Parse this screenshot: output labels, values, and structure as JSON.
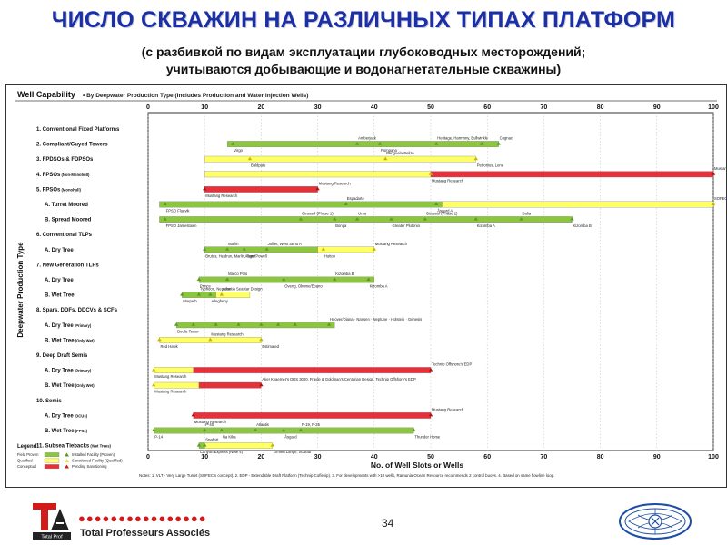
{
  "slide": {
    "title": "ЧИСЛО СКВАЖИН НА РАЗЛИЧНЫХ ТИПАХ ПЛАТФОРМ",
    "subtitle_line1": "(с разбивкой по видам эксплуатации глубоководных месторождений;",
    "subtitle_line2": "учитываются добывающие и водонагнетательные скважины)",
    "page_number": "34",
    "company_dots": "●●●●●●●●●●●●●●●●",
    "company_name": "Total Professeurs Associés",
    "logo_text": "TPA",
    "logo_subtext": "Total Prof"
  },
  "chart_data": {
    "type": "bar",
    "title": "Well Capability",
    "subtitle": "• By Deepwater Production Type (Includes Production and Water Injection Wells)",
    "xlabel": "No. of Well Slots or Wells",
    "ylabel": "Deepwater Production Type",
    "xlim": [
      0,
      100
    ],
    "xticks": [
      0,
      10,
      20,
      30,
      40,
      50,
      60,
      70,
      80,
      90,
      100
    ],
    "colors": {
      "proven": "#8cc63f",
      "qualified": "#ffff66",
      "conceptual": "#e8303a",
      "marker": "#5a9a2a",
      "frame": "#333333"
    },
    "categories": [
      {
        "label": "1. Conventional Fixed Platforms",
        "sub": ""
      },
      {
        "label": "2. Compliant/Guyed Towers",
        "sub": ""
      },
      {
        "label": "3. FPDSOs & FDPSOs",
        "sub": ""
      },
      {
        "label": "4. FPSOs",
        "sub": "(Non-Monohull)"
      },
      {
        "label": "5. FPSOs",
        "sub": "(Monohull)"
      },
      {
        "label": "A. Turret Moored",
        "sub": ""
      },
      {
        "label": "B. Spread Moored",
        "sub": ""
      },
      {
        "label": "6. Conventional TLPs",
        "sub": ""
      },
      {
        "label": "A. Dry Tree",
        "sub": ""
      },
      {
        "label": "7. New Generation TLPs",
        "sub": ""
      },
      {
        "label": "A. Dry Tree",
        "sub": ""
      },
      {
        "label": "B. Wet Tree",
        "sub": ""
      },
      {
        "label": "8. Spars, DDFs, DDCVs & SCFs",
        "sub": ""
      },
      {
        "label": "A. Dry Tree",
        "sub": "(Primary)"
      },
      {
        "label": "B. Wet Tree",
        "sub": "(Only Wet)"
      },
      {
        "label": "9. Deep Draft Semis",
        "sub": ""
      },
      {
        "label": "A. Dry Tree",
        "sub": "(Primary)"
      },
      {
        "label": "B. Wet Tree",
        "sub": "(Only Wet)"
      },
      {
        "label": "10. Semis",
        "sub": ""
      },
      {
        "label": "A. Dry Tree",
        "sub": "(DCUs)"
      },
      {
        "label": "B. Wet Tree",
        "sub": "(FPSs)"
      },
      {
        "label": "11. Subsea Tiebacks",
        "sub": "(Wet Trees)"
      }
    ],
    "bars": [
      {
        "row": 1,
        "segments": [
          {
            "status": "proven",
            "from": 14,
            "to": 62
          }
        ],
        "points": [
          {
            "x": 15,
            "label": "Virgo"
          },
          {
            "x": 37,
            "label": "Amberjack"
          },
          {
            "x": 41,
            "label": "Pompano"
          },
          {
            "x": 51,
            "label": "Heritage, Harmony, Bullwinkle"
          },
          {
            "x": 59,
            "label": ""
          },
          {
            "x": 62,
            "label": "Cognac"
          }
        ]
      },
      {
        "row": 2,
        "segments": [
          {
            "status": "qualified",
            "from": 10,
            "to": 58
          }
        ],
        "points": [
          {
            "x": 18,
            "label": "Baldpate"
          },
          {
            "x": 42,
            "label": "Benguela-Belize"
          },
          {
            "x": 58,
            "label": "Petronius, Lena"
          }
        ]
      },
      {
        "row": 3,
        "segments": [
          {
            "status": "qualified",
            "from": 10,
            "to": 50
          },
          {
            "status": "conceptual",
            "from": 50,
            "to": 100
          }
        ],
        "points": [
          {
            "x": 50,
            "label": "Mustang Research"
          },
          {
            "x": 100,
            "label": "Mustang Research"
          }
        ]
      },
      {
        "row": 4,
        "segments": [
          {
            "status": "conceptual",
            "from": 10,
            "to": 30
          }
        ],
        "points": [
          {
            "x": 10,
            "label": "Mustang Research"
          },
          {
            "x": 30,
            "label": "Mustang Research"
          }
        ]
      },
      {
        "row": 5,
        "segments": [
          {
            "status": "proven",
            "from": 2,
            "to": 52
          },
          {
            "status": "qualified",
            "from": 52,
            "to": 100
          }
        ],
        "points": [
          {
            "x": 3,
            "label": "FPSO Fluevik"
          },
          {
            "x": 35,
            "label": "Espadarte"
          },
          {
            "x": 51,
            "label": "Åsgard A"
          },
          {
            "x": 100,
            "label": "SOFEC's VLT (1) Concept"
          }
        ]
      },
      {
        "row": 6,
        "segments": [
          {
            "status": "proven",
            "from": 2,
            "to": 75
          }
        ],
        "points": [
          {
            "x": 3,
            "label": "FPSO Jamestown"
          },
          {
            "x": 27,
            "label": "Girassol (Phase 1)"
          },
          {
            "x": 33,
            "label": "Bonga"
          },
          {
            "x": 37,
            "label": "Ursa"
          },
          {
            "x": 43,
            "label": "Greater Plutonio"
          },
          {
            "x": 49,
            "label": "Girassol (Phase 2)"
          },
          {
            "x": 58,
            "label": "Kizomba A"
          },
          {
            "x": 66,
            "label": "Dalia"
          },
          {
            "x": 75,
            "label": "Kizomba B"
          }
        ]
      },
      {
        "row": 8,
        "segments": [
          {
            "status": "proven",
            "from": 10,
            "to": 30
          },
          {
            "status": "qualified",
            "from": 30,
            "to": 40
          }
        ],
        "points": [
          {
            "x": 10,
            "label": "Brutus, Heidrun, Marlin, Ram/Powell"
          },
          {
            "x": 14,
            "label": "Marlin"
          },
          {
            "x": 17,
            "label": "Auger"
          },
          {
            "x": 21,
            "label": "Jolliet, West Seno A"
          },
          {
            "x": 31,
            "label": "Hutton"
          },
          {
            "x": 40,
            "label": "Mustang Research"
          }
        ]
      },
      {
        "row": 10,
        "segments": [
          {
            "status": "proven",
            "from": 9,
            "to": 40
          }
        ],
        "points": [
          {
            "x": 9,
            "label": "Prince"
          },
          {
            "x": 14,
            "label": "Marco Polo"
          },
          {
            "x": 24,
            "label": "Oveng, Okume/Ebano"
          },
          {
            "x": 33,
            "label": "Kizomba B"
          },
          {
            "x": 39,
            "label": "Kizomba A"
          }
        ]
      },
      {
        "row": 11,
        "segments": [
          {
            "status": "proven",
            "from": 6,
            "to": 12
          },
          {
            "status": "qualified",
            "from": 12,
            "to": 18
          }
        ],
        "points": [
          {
            "x": 6,
            "label": "Morpeth"
          },
          {
            "x": 9,
            "label": "Typhoon, Neptune"
          },
          {
            "x": 11,
            "label": "Allegheny"
          },
          {
            "x": 13,
            "label": "Atlantia Seastar Design"
          }
        ]
      },
      {
        "row": 13,
        "segments": [
          {
            "status": "proven",
            "from": 5,
            "to": 33
          }
        ],
        "points": [
          {
            "x": 5,
            "label": "Devils Tower"
          },
          {
            "x": 8,
            "label": ""
          },
          {
            "x": 12,
            "label": ""
          },
          {
            "x": 16,
            "label": ""
          },
          {
            "x": 20,
            "label": ""
          },
          {
            "x": 23,
            "label": ""
          },
          {
            "x": 26,
            "label": ""
          },
          {
            "x": 32,
            "label": "Hoover/Diana · Nansen · Neptune · Holstein · Genesis"
          }
        ]
      },
      {
        "row": 14,
        "segments": [
          {
            "status": "qualified",
            "from": 2,
            "to": 20
          }
        ],
        "points": [
          {
            "x": 2,
            "label": "Red Hawk"
          },
          {
            "x": 11,
            "label": "Mustang Research"
          },
          {
            "x": 20,
            "label": "Estimated"
          }
        ]
      },
      {
        "row": 16,
        "segments": [
          {
            "status": "qualified",
            "from": 1,
            "to": 8
          },
          {
            "status": "conceptual",
            "from": 8,
            "to": 50
          }
        ],
        "points": [
          {
            "x": 1,
            "label": "Mustang Research"
          },
          {
            "x": 50,
            "label": "Technip Offshore's EDP"
          }
        ]
      },
      {
        "row": 17,
        "segments": [
          {
            "status": "qualified",
            "from": 1,
            "to": 9
          },
          {
            "status": "conceptual",
            "from": 9,
            "to": 20
          }
        ],
        "points": [
          {
            "x": 1,
            "label": "Mustang Research"
          },
          {
            "x": 20,
            "label": "Aker Kvaerner's DDS 3000, Friede & Goldman's Centurian Design, Technip Offshore's EDP"
          }
        ]
      },
      {
        "row": 19,
        "segments": [
          {
            "status": "conceptual",
            "from": 8,
            "to": 50
          }
        ],
        "points": [
          {
            "x": 8,
            "label": "Mustang Research"
          },
          {
            "x": 50,
            "label": "Mustang Research"
          }
        ]
      },
      {
        "row": 20,
        "segments": [
          {
            "status": "proven",
            "from": 1,
            "to": 47
          }
        ],
        "points": [
          {
            "x": 1,
            "label": "P-14"
          },
          {
            "x": 10,
            "label": "P-40"
          },
          {
            "x": 13,
            "label": "Na Kika"
          },
          {
            "x": 19,
            "label": "Atlantis"
          },
          {
            "x": 24,
            "label": "Åsgard"
          },
          {
            "x": 27,
            "label": "P-19, P-25"
          },
          {
            "x": 47,
            "label": "Thunder Horse"
          }
        ]
      },
      {
        "row": 21,
        "segments": [
          {
            "status": "proven",
            "from": 9,
            "to": 10
          },
          {
            "status": "qualified",
            "from": 10,
            "to": 22
          }
        ],
        "points": [
          {
            "x": 9,
            "label": "Canyon Express (Note 4)"
          },
          {
            "x": 10,
            "label": "Snøhvit"
          },
          {
            "x": 22,
            "label": "Ormen Lange, Scarab"
          }
        ]
      }
    ],
    "legend": {
      "title": "Legend:",
      "bars": [
        {
          "status": "proven",
          "label": "Field Proven"
        },
        {
          "status": "qualified",
          "label": "Qualified"
        },
        {
          "status": "conceptual",
          "label": "Conceptual"
        }
      ],
      "markers": [
        {
          "color": "#5a9a2a",
          "label": "Installed Facility (Proven)"
        },
        {
          "color": "#e6e64a",
          "label": "Sanctioned Facility (Qualified)"
        },
        {
          "color": "#d21a1a",
          "label": "Pending Sanctioning"
        }
      ]
    },
    "notes": "Notes: 1. VLT - Very Large Turret (SOFEC's concept). 2. EDP - Extendable Draft Platform (Technip Coflexip). 3. For developments with >10 wells, Ramunia Ocean Resource recommends 2 control buoys. 4. Based on same flowline loop."
  }
}
